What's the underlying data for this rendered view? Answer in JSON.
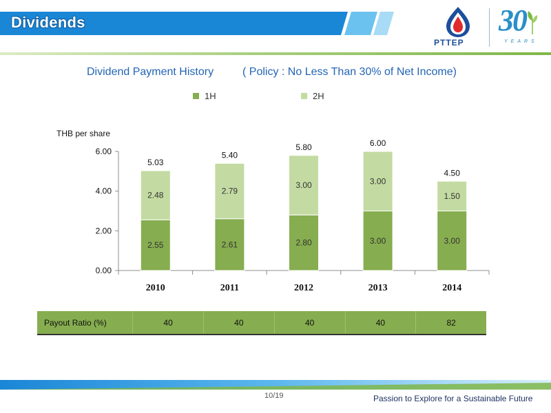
{
  "header": {
    "title": "Dividends"
  },
  "logo": {
    "name": "PTTEP",
    "anniversary": "30",
    "anniversary_sub": "YEARS"
  },
  "subtitle": {
    "main": "Dividend Payment History",
    "policy": "( Policy : No Less Than 30% of Net Income)"
  },
  "chart_data": {
    "type": "bar",
    "stacked": true,
    "categories": [
      "2010",
      "2011",
      "2012",
      "2013",
      "2014"
    ],
    "series": [
      {
        "name": "1H",
        "values": [
          2.55,
          2.61,
          2.8,
          3.0,
          3.0
        ],
        "labels": [
          "2.55",
          "2.61",
          "2.80",
          "3.00",
          "3.00"
        ],
        "color": "#86ad4f"
      },
      {
        "name": "2H",
        "values": [
          2.48,
          2.79,
          3.0,
          3.0,
          1.5
        ],
        "labels": [
          "2.48",
          "2.79",
          "3.00",
          "3.00",
          "1.50"
        ],
        "color": "#c3dba2"
      }
    ],
    "totals": [
      "5.03",
      "5.40",
      "5.80",
      "6.00",
      "4.50"
    ],
    "ylabel": "THB per share",
    "ylim": [
      0,
      6
    ],
    "yticks": [
      "0.00",
      "2.00",
      "4.00",
      "6.00"
    ],
    "grid": false,
    "legend": "top"
  },
  "payout": {
    "label": "Payout Ratio (%)",
    "values": [
      "40",
      "40",
      "40",
      "40",
      "82"
    ]
  },
  "colors": {
    "accent_blue": "#1a7fd0",
    "header_title": "#2364b4",
    "bar_1h": "#86ad4f",
    "bar_2h": "#c3dba2"
  },
  "footer": {
    "page": "10/19",
    "tagline": "Passion to Explore for a Sustainable Future"
  }
}
